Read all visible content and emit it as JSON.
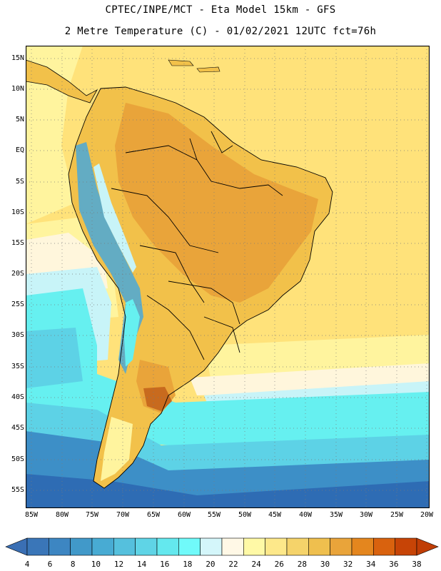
{
  "header": {
    "line1": "CPTEC/INPE/MCT -  Eta Model 15km - GFS",
    "line2": "2 Metre Temperature (C) - 01/02/2021 12UTC fct=76h"
  },
  "map": {
    "lat_labels": [
      "15N",
      "10N",
      "5N",
      "EQ",
      "5S",
      "10S",
      "15S",
      "20S",
      "25S",
      "30S",
      "35S",
      "40S",
      "45S",
      "50S",
      "55S"
    ],
    "lon_labels": [
      "85W",
      "80W",
      "75W",
      "70W",
      "65W",
      "60W",
      "55W",
      "50W",
      "45W",
      "40W",
      "35W",
      "30W",
      "25W",
      "20W"
    ],
    "region_colors": {
      "ocean_south_deep": "#2e6cb4",
      "ocean_south_mid": "#3d8fc7",
      "ocean_south_light": "#5dd2e6",
      "ocean_cyan": "#66f0f0",
      "pale_cyan": "#c8f4f8",
      "cream": "#fff6dc",
      "pale_yellow": "#fff49e",
      "yellow": "#ffe27a",
      "gold": "#f2c14a",
      "orange": "#e9a43a",
      "dark_orange": "#c86a1e",
      "andes_blue": "#4aa8d8"
    }
  },
  "colorbar": {
    "labels": [
      "4",
      "6",
      "8",
      "10",
      "12",
      "14",
      "16",
      "18",
      "20",
      "22",
      "24",
      "26",
      "28",
      "30",
      "32",
      "34",
      "36",
      "38"
    ],
    "colors": [
      "#3a76b8",
      "#3d86c2",
      "#4199c9",
      "#48abd3",
      "#55c0dd",
      "#5fd4e6",
      "#64e8ee",
      "#70fafa",
      "#d4f6fa",
      "#fff8e6",
      "#fff9a6",
      "#fde88a",
      "#f5d36a",
      "#efbf4e",
      "#e9a43a",
      "#e4861e",
      "#d9620e",
      "#c74406"
    ],
    "low_arrow_color": "#3a6fb4",
    "high_arrow_color": "#c03d05"
  }
}
